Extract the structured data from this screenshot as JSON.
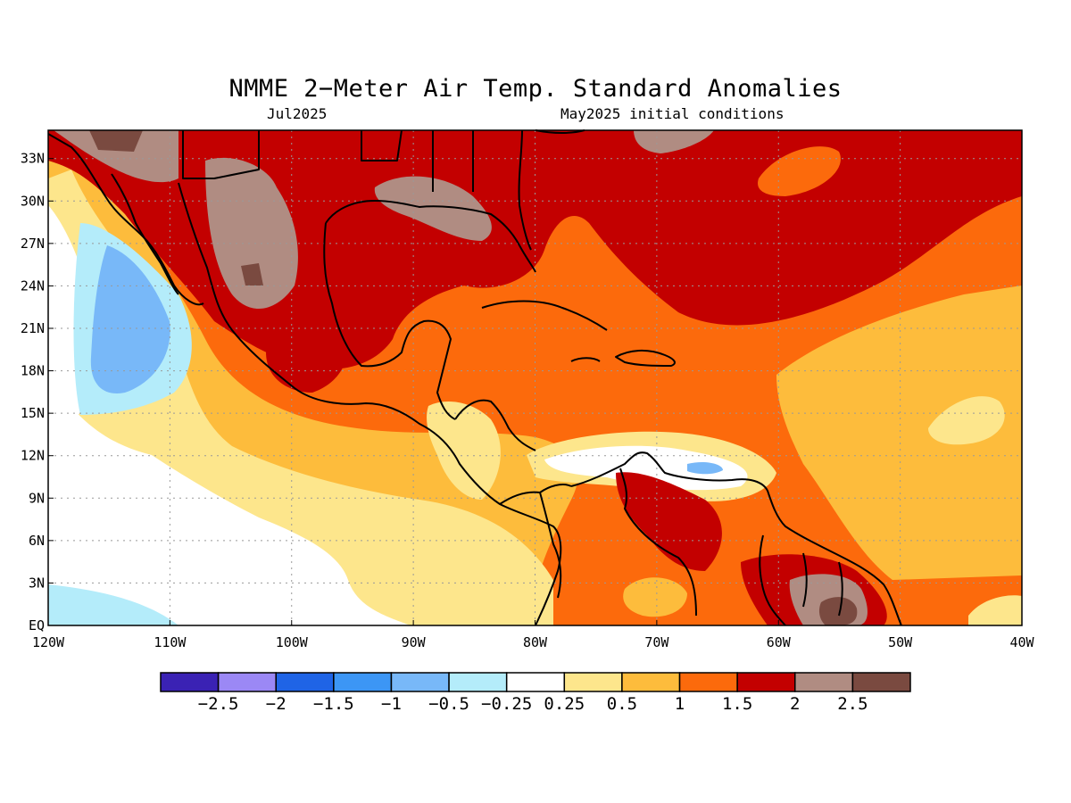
{
  "title": "NMME 2−Meter Air Temp. Standard Anomalies",
  "subtitle_left": "Jul2025",
  "subtitle_right": "May2025 initial conditions",
  "map": {
    "lon_range": [
      -120,
      -40
    ],
    "lat_range": [
      0,
      35
    ],
    "lat_ticks": [
      {
        "value": 33,
        "label": "33N"
      },
      {
        "value": 30,
        "label": "30N"
      },
      {
        "value": 27,
        "label": "27N"
      },
      {
        "value": 24,
        "label": "24N"
      },
      {
        "value": 21,
        "label": "21N"
      },
      {
        "value": 18,
        "label": "18N"
      },
      {
        "value": 15,
        "label": "15N"
      },
      {
        "value": 12,
        "label": "12N"
      },
      {
        "value": 9,
        "label": "9N"
      },
      {
        "value": 6,
        "label": "6N"
      },
      {
        "value": 3,
        "label": "3N"
      },
      {
        "value": 0,
        "label": "EQ"
      }
    ],
    "lon_ticks": [
      {
        "value": -120,
        "label": "120W"
      },
      {
        "value": -110,
        "label": "110W"
      },
      {
        "value": -100,
        "label": "100W"
      },
      {
        "value": -90,
        "label": "90W"
      },
      {
        "value": -80,
        "label": "80W"
      },
      {
        "value": -70,
        "label": "70W"
      },
      {
        "value": -60,
        "label": "60W"
      },
      {
        "value": -50,
        "label": "50W"
      },
      {
        "value": -40,
        "label": "40W"
      }
    ],
    "grid": "dotted"
  },
  "colorbar": {
    "colors": [
      "#3a22b4",
      "#9b88f5",
      "#1f64e6",
      "#3c96f5",
      "#78b8f8",
      "#b4ecfa",
      "#ffffff",
      "#fde68c",
      "#fdbc3c",
      "#fc6a0c",
      "#c30000",
      "#b08c82",
      "#7a4a40"
    ],
    "labels": [
      "−2.5",
      "−2",
      "−1.5",
      "−1",
      "−0.5",
      "−0.25",
      "0.25",
      "0.5",
      "1",
      "1.5",
      "2",
      "2.5"
    ]
  }
}
